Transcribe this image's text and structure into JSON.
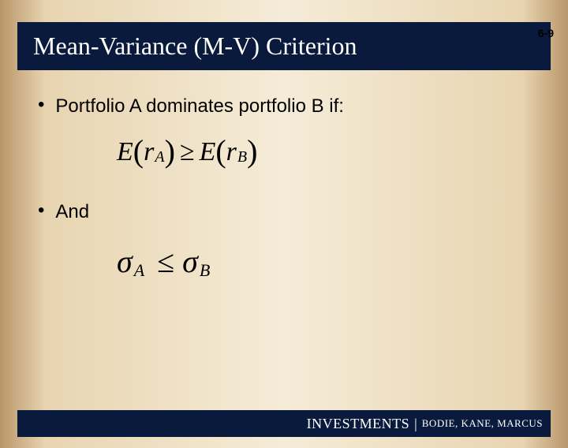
{
  "page_number": "6-9",
  "title": "Mean-Variance (M-V) Criterion",
  "bullets": {
    "b1": "Portfolio A dominates portfolio B if:",
    "b2": "And"
  },
  "formula": {
    "expected_return": {
      "E": "E",
      "r": "r",
      "sub_a": "A",
      "sub_b": "B",
      "ge": "≥"
    },
    "sigma": {
      "sigma": "σ",
      "sub_a": "A",
      "sub_b": "B",
      "le": "≤"
    }
  },
  "footer": {
    "investments": "INVESTMENTS",
    "separator": "|",
    "authors": "BODIE, KANE, MARCUS"
  },
  "colors": {
    "title_bg": "#0a1a3d",
    "title_fg": "#ffffff",
    "text": "#000000"
  }
}
